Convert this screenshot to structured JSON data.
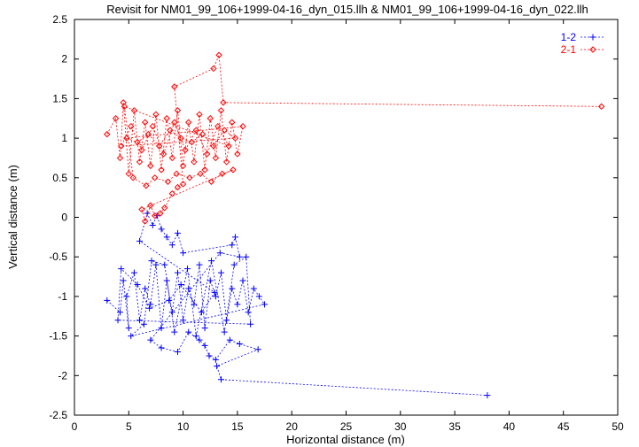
{
  "chart_data": {
    "type": "scatter",
    "title": "Revisit for NM01_99_106+1999-04-16_dyn_015.llh & NM01_99_106+1999-04-16_dyn_022.llh",
    "xlabel": "Horizontal distance (m)",
    "ylabel": "Vertical distance (m)",
    "xlim": [
      0,
      50
    ],
    "ylim": [
      -2.5,
      2.5
    ],
    "x_ticks": [
      "0",
      "5",
      "10",
      "15",
      "20",
      "25",
      "30",
      "35",
      "40",
      "45",
      "50"
    ],
    "y_ticks": [
      "2.5",
      "2",
      "1.5",
      "1",
      "0.5",
      "0",
      "-0.5",
      "-1",
      "-1.5",
      "-2",
      "-2.5"
    ],
    "grid": false,
    "legend_position": "top-right",
    "series": [
      {
        "name": "1-2",
        "color": "#0000ff",
        "marker": "plus",
        "line": "dashed",
        "points": [
          [
            3,
            -1.05
          ],
          [
            4.2,
            -1.2
          ],
          [
            4.5,
            -0.8
          ],
          [
            5,
            -1.4
          ],
          [
            4.8,
            -1.0
          ],
          [
            5.5,
            -0.7
          ],
          [
            6,
            -1.3
          ],
          [
            6.5,
            -0.9
          ],
          [
            7,
            -1.1
          ],
          [
            7.5,
            -0.6
          ],
          [
            8,
            -1.4
          ],
          [
            8.5,
            -0.8
          ],
          [
            9,
            -1.2
          ],
          [
            9.5,
            -0.7
          ],
          [
            10,
            -1.3
          ],
          [
            10.5,
            -0.9
          ],
          [
            11,
            -1.1
          ],
          [
            11.5,
            -0.6
          ],
          [
            12,
            -1.4
          ],
          [
            12.5,
            -0.8
          ],
          [
            13,
            -1.0
          ],
          [
            13.5,
            -0.7
          ],
          [
            14,
            -1.3
          ],
          [
            14.5,
            -0.9
          ],
          [
            15,
            -1.1
          ],
          [
            15.5,
            -0.8
          ],
          [
            16,
            -1.2
          ],
          [
            16.5,
            -0.9
          ],
          [
            17,
            -1.0
          ],
          [
            17.5,
            -1.1
          ],
          [
            5.2,
            -1.5
          ],
          [
            6.4,
            -1.35
          ],
          [
            7.1,
            -0.55
          ],
          [
            8.3,
            -0.6
          ],
          [
            9.2,
            -1.45
          ],
          [
            10.4,
            -0.65
          ],
          [
            11.2,
            -1.5
          ],
          [
            12.6,
            -0.55
          ],
          [
            13.8,
            -1.45
          ],
          [
            14.7,
            -0.6
          ],
          [
            15.8,
            -0.5
          ],
          [
            16.2,
            -1.35
          ],
          [
            4.0,
            -1.3
          ],
          [
            4.3,
            -0.65
          ],
          [
            5.8,
            -0.85
          ],
          [
            6.9,
            -1.15
          ],
          [
            8.7,
            -1.05
          ],
          [
            9.8,
            -0.85
          ],
          [
            11.7,
            -1.2
          ],
          [
            12.9,
            -0.95
          ],
          [
            6,
            -0.3
          ],
          [
            6.7,
            0.05
          ],
          [
            7.2,
            -0.1
          ],
          [
            7.6,
            0.02
          ],
          [
            8,
            -0.15
          ],
          [
            8.5,
            -0.25
          ],
          [
            9,
            -0.35
          ],
          [
            9.5,
            -0.2
          ],
          [
            10,
            -0.45
          ],
          [
            14.5,
            -0.35
          ],
          [
            14.8,
            -0.25
          ],
          [
            15.2,
            -0.5
          ],
          [
            13.4,
            -0.45
          ],
          [
            7,
            -1.55
          ],
          [
            8,
            -1.65
          ],
          [
            9.5,
            -1.7
          ],
          [
            10.5,
            -1.45
          ],
          [
            11.5,
            -1.55
          ],
          [
            12,
            -1.62
          ],
          [
            12.4,
            -1.75
          ],
          [
            13,
            -1.8
          ],
          [
            14.3,
            -1.55
          ],
          [
            15.2,
            -1.6
          ],
          [
            16.9,
            -1.67
          ],
          [
            13.1,
            -1.88
          ],
          [
            13.5,
            -2.05
          ],
          [
            38,
            -2.25
          ]
        ]
      },
      {
        "name": "2-1",
        "color": "#ff0000",
        "marker": "diamond",
        "line": "dashed",
        "points": [
          [
            3,
            1.05
          ],
          [
            3.8,
            1.25
          ],
          [
            4.2,
            0.75
          ],
          [
            4.5,
            1.45
          ],
          [
            5,
            0.55
          ],
          [
            5.5,
            1.35
          ],
          [
            6,
            0.7
          ],
          [
            6.5,
            1.2
          ],
          [
            7,
            0.65
          ],
          [
            7.5,
            1.3
          ],
          [
            8,
            0.6
          ],
          [
            8.5,
            1.25
          ],
          [
            9,
            0.75
          ],
          [
            9.5,
            1.35
          ],
          [
            10,
            0.65
          ],
          [
            10.5,
            1.2
          ],
          [
            11,
            0.7
          ],
          [
            11.5,
            1.3
          ],
          [
            12,
            0.6
          ],
          [
            12.5,
            1.25
          ],
          [
            13,
            0.75
          ],
          [
            13.5,
            1.35
          ],
          [
            14,
            0.7
          ],
          [
            14.5,
            1.2
          ],
          [
            15,
            0.8
          ],
          [
            15.5,
            1.15
          ],
          [
            4.8,
            1.0
          ],
          [
            5.8,
            0.95
          ],
          [
            6.8,
            1.05
          ],
          [
            7.8,
            0.9
          ],
          [
            8.8,
            1.1
          ],
          [
            9.8,
            1.0
          ],
          [
            10.8,
            0.95
          ],
          [
            11.8,
            1.05
          ],
          [
            12.8,
            0.9
          ],
          [
            13.8,
            1.1
          ],
          [
            14.8,
            1.0
          ],
          [
            4.3,
            0.9
          ],
          [
            5.2,
            1.15
          ],
          [
            6.2,
            0.85
          ],
          [
            7.2,
            1.15
          ],
          [
            8.2,
            0.8
          ],
          [
            9.2,
            1.2
          ],
          [
            10.2,
            0.85
          ],
          [
            11.2,
            1.1
          ],
          [
            12.2,
            0.8
          ],
          [
            13.2,
            1.15
          ],
          [
            14.2,
            0.9
          ],
          [
            4.6,
            1.4
          ],
          [
            5.4,
            0.5
          ],
          [
            6.6,
            0.4
          ],
          [
            7.4,
            0.5
          ],
          [
            8.6,
            0.45
          ],
          [
            9.4,
            0.55
          ],
          [
            10.6,
            0.5
          ],
          [
            11.6,
            0.55
          ],
          [
            12.6,
            0.45
          ],
          [
            13.6,
            0.55
          ],
          [
            14.6,
            0.6
          ],
          [
            6.2,
            0.1
          ],
          [
            6.5,
            -0.05
          ],
          [
            7,
            0.15
          ],
          [
            7.4,
            0.02
          ],
          [
            7.9,
            0.05
          ],
          [
            8.3,
            0.12
          ],
          [
            9,
            0.3
          ],
          [
            9.5,
            0.38
          ],
          [
            10,
            0.42
          ],
          [
            9.2,
            1.65
          ],
          [
            12.8,
            1.88
          ],
          [
            13.3,
            2.05
          ],
          [
            13.7,
            1.45
          ],
          [
            48.5,
            1.4
          ]
        ]
      }
    ]
  }
}
